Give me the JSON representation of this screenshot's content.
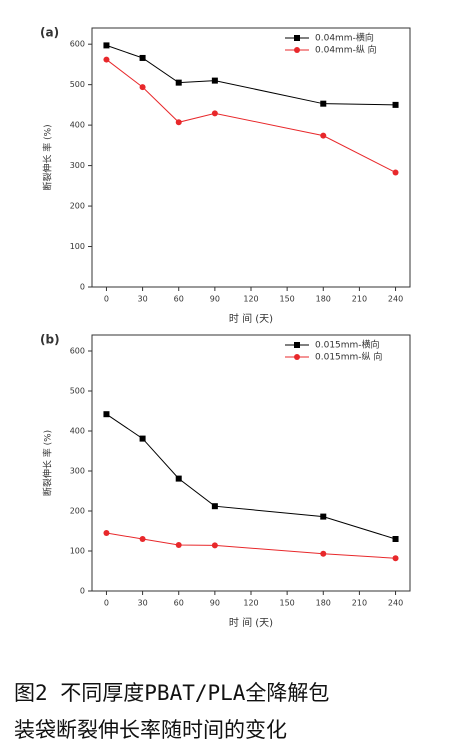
{
  "chart_data": [
    {
      "type": "line",
      "title": "(a)",
      "x_label": "时 间 (天)",
      "y_label": "断裂伸长 率 (%)",
      "x": [
        0,
        30,
        60,
        90,
        180,
        240
      ],
      "series": [
        {
          "name": "0.04mm-横向",
          "color": "#000000",
          "marker": "square",
          "values": [
            597,
            566,
            505,
            510,
            453,
            450
          ]
        },
        {
          "name": "0.04mm-纵 向",
          "color": "#e8282b",
          "marker": "circle",
          "values": [
            562,
            494,
            407,
            429,
            374,
            283
          ]
        }
      ],
      "xlim": [
        -12,
        252
      ],
      "xticks": [
        0,
        30,
        60,
        90,
        120,
        150,
        180,
        210,
        240
      ],
      "ylim": [
        0,
        640
      ],
      "yticks": [
        0,
        100,
        200,
        300,
        400,
        500,
        600
      ],
      "grid": false,
      "legend": "top-right"
    },
    {
      "type": "line",
      "title": "(b)",
      "x_label": "时 间 (天)",
      "y_label": "断裂伸长 率 (%)",
      "x": [
        0,
        30,
        60,
        90,
        180,
        240
      ],
      "series": [
        {
          "name": "0.015mm-横向",
          "color": "#000000",
          "marker": "square",
          "values": [
            442,
            381,
            281,
            212,
            186,
            130
          ]
        },
        {
          "name": "0.015mm-纵 向",
          "color": "#e8282b",
          "marker": "circle",
          "values": [
            145,
            130,
            115,
            114,
            93,
            82
          ]
        }
      ],
      "xlim": [
        -12,
        252
      ],
      "xticks": [
        0,
        30,
        60,
        90,
        120,
        150,
        180,
        210,
        240
      ],
      "ylim": [
        0,
        640
      ],
      "yticks": [
        0,
        100,
        200,
        300,
        400,
        500,
        600
      ],
      "grid": false,
      "legend": "top-right"
    }
  ],
  "caption": [
    "图2  不同厚度PBAT/PLA全降解包",
    "装袋断裂伸长率随时间的变化"
  ]
}
